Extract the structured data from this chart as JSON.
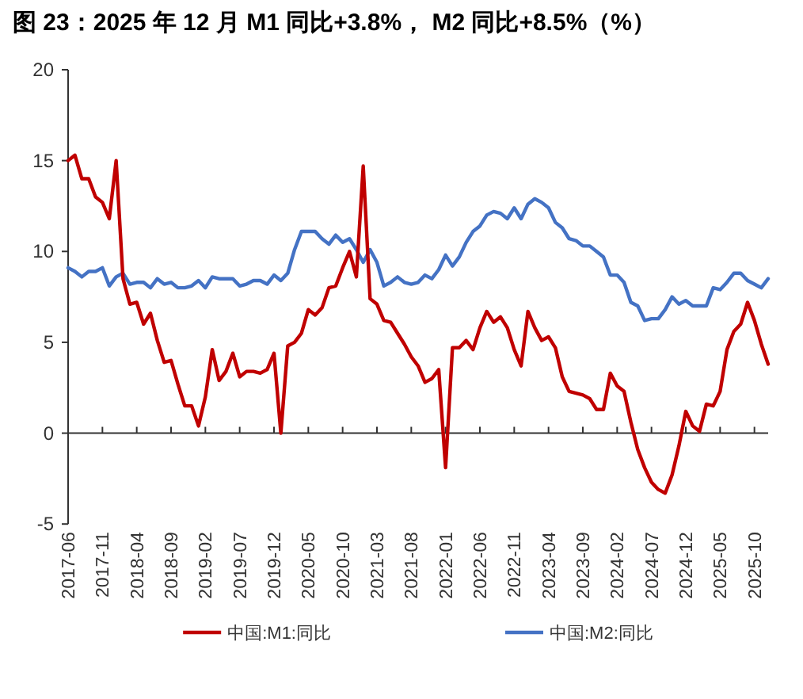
{
  "chart_data": {
    "type": "line",
    "title": "图 23：2025 年 12 月 M1 同比+3.8%， M2 同比+8.5%（%）",
    "x": [
      "2017-06",
      "2017-07",
      "2017-08",
      "2017-09",
      "2017-10",
      "2017-11",
      "2017-12",
      "2018-01",
      "2018-02",
      "2018-03",
      "2018-04",
      "2018-05",
      "2018-06",
      "2018-07",
      "2018-08",
      "2018-09",
      "2018-10",
      "2018-11",
      "2018-12",
      "2019-01",
      "2019-02",
      "2019-03",
      "2019-04",
      "2019-05",
      "2019-06",
      "2019-07",
      "2019-08",
      "2019-09",
      "2019-10",
      "2019-11",
      "2019-12",
      "2020-01",
      "2020-02",
      "2020-03",
      "2020-04",
      "2020-05",
      "2020-06",
      "2020-07",
      "2020-08",
      "2020-09",
      "2020-10",
      "2020-11",
      "2020-12",
      "2021-01",
      "2021-02",
      "2021-03",
      "2021-04",
      "2021-05",
      "2021-06",
      "2021-07",
      "2021-08",
      "2021-09",
      "2021-10",
      "2021-11",
      "2021-12",
      "2022-01",
      "2022-02",
      "2022-03",
      "2022-04",
      "2022-05",
      "2022-06",
      "2022-07",
      "2022-08",
      "2022-09",
      "2022-10",
      "2022-11",
      "2022-12",
      "2023-01",
      "2023-02",
      "2023-03",
      "2023-04",
      "2023-05",
      "2023-06",
      "2023-07",
      "2023-08",
      "2023-09",
      "2023-10",
      "2023-11",
      "2023-12",
      "2024-01",
      "2024-02",
      "2024-03",
      "2024-04",
      "2024-05",
      "2024-06",
      "2024-07",
      "2024-08",
      "2024-09",
      "2024-10",
      "2024-11",
      "2024-12",
      "2025-01",
      "2025-02",
      "2025-03",
      "2025-04",
      "2025-05",
      "2025-06",
      "2025-07",
      "2025-08",
      "2025-09",
      "2025-10",
      "2025-11",
      "2025-12"
    ],
    "series": [
      {
        "name": "中国:M1:同比",
        "color": "#c00000",
        "values": [
          15.0,
          15.3,
          14.0,
          14.0,
          13.0,
          12.7,
          11.8,
          15.0,
          8.5,
          7.1,
          7.2,
          6.0,
          6.6,
          5.1,
          3.9,
          4.0,
          2.7,
          1.5,
          1.5,
          0.4,
          2.0,
          4.6,
          2.9,
          3.4,
          4.4,
          3.1,
          3.4,
          3.4,
          3.3,
          3.5,
          4.4,
          0.0,
          4.8,
          5.0,
          5.5,
          6.8,
          6.5,
          6.9,
          8.0,
          8.1,
          9.1,
          10.0,
          8.6,
          14.7,
          7.4,
          7.1,
          6.2,
          6.1,
          5.5,
          4.9,
          4.2,
          3.7,
          2.8,
          3.0,
          3.5,
          -1.9,
          4.7,
          4.7,
          5.1,
          4.6,
          5.8,
          6.7,
          6.1,
          6.4,
          5.8,
          4.6,
          3.7,
          6.7,
          5.8,
          5.1,
          5.3,
          4.7,
          3.1,
          2.3,
          2.2,
          2.1,
          1.9,
          1.3,
          1.3,
          3.3,
          2.6,
          2.3,
          0.6,
          -0.9,
          -1.9,
          -2.7,
          -3.1,
          -3.3,
          -2.3,
          -0.7,
          1.2,
          0.4,
          0.1,
          1.6,
          1.5,
          2.3,
          4.6,
          5.6,
          6.0,
          7.2,
          6.2,
          4.9,
          3.8
        ]
      },
      {
        "name": "中国:M2:同比",
        "color": "#4472c4",
        "values": [
          9.1,
          8.9,
          8.6,
          8.9,
          8.9,
          9.1,
          8.1,
          8.6,
          8.8,
          8.2,
          8.3,
          8.3,
          8.0,
          8.5,
          8.2,
          8.3,
          8.0,
          8.0,
          8.1,
          8.4,
          8.0,
          8.6,
          8.5,
          8.5,
          8.5,
          8.1,
          8.2,
          8.4,
          8.4,
          8.2,
          8.7,
          8.4,
          8.8,
          10.1,
          11.1,
          11.1,
          11.1,
          10.7,
          10.4,
          10.9,
          10.5,
          10.7,
          10.1,
          9.4,
          10.1,
          9.4,
          8.1,
          8.3,
          8.6,
          8.3,
          8.2,
          8.3,
          8.7,
          8.5,
          9.0,
          9.8,
          9.2,
          9.7,
          10.5,
          11.1,
          11.4,
          12.0,
          12.2,
          12.1,
          11.8,
          12.4,
          11.8,
          12.6,
          12.9,
          12.7,
          12.4,
          11.6,
          11.3,
          10.7,
          10.6,
          10.3,
          10.3,
          10.0,
          9.7,
          8.7,
          8.7,
          8.3,
          7.2,
          7.0,
          6.2,
          6.3,
          6.3,
          6.8,
          7.5,
          7.1,
          7.3,
          7.0,
          7.0,
          7.0,
          8.0,
          7.9,
          8.3,
          8.8,
          8.8,
          8.4,
          8.2,
          8.0,
          8.5
        ]
      }
    ],
    "xlim": [
      "2017-06",
      "2025-12"
    ],
    "xticks": [
      "2017-06",
      "2017-11",
      "2018-04",
      "2018-09",
      "2019-02",
      "2019-07",
      "2019-12",
      "2020-05",
      "2020-10",
      "2021-03",
      "2021-08",
      "2022-01",
      "2022-06",
      "2022-11",
      "2023-04",
      "2023-09",
      "2024-02",
      "2024-07",
      "2024-12",
      "2025-05",
      "2025-10"
    ],
    "ylim": [
      -5,
      20
    ],
    "yticks": [
      -5,
      0,
      5,
      10,
      15,
      20
    ],
    "legend": "bottom",
    "marker": "none",
    "line_style": "solid"
  }
}
